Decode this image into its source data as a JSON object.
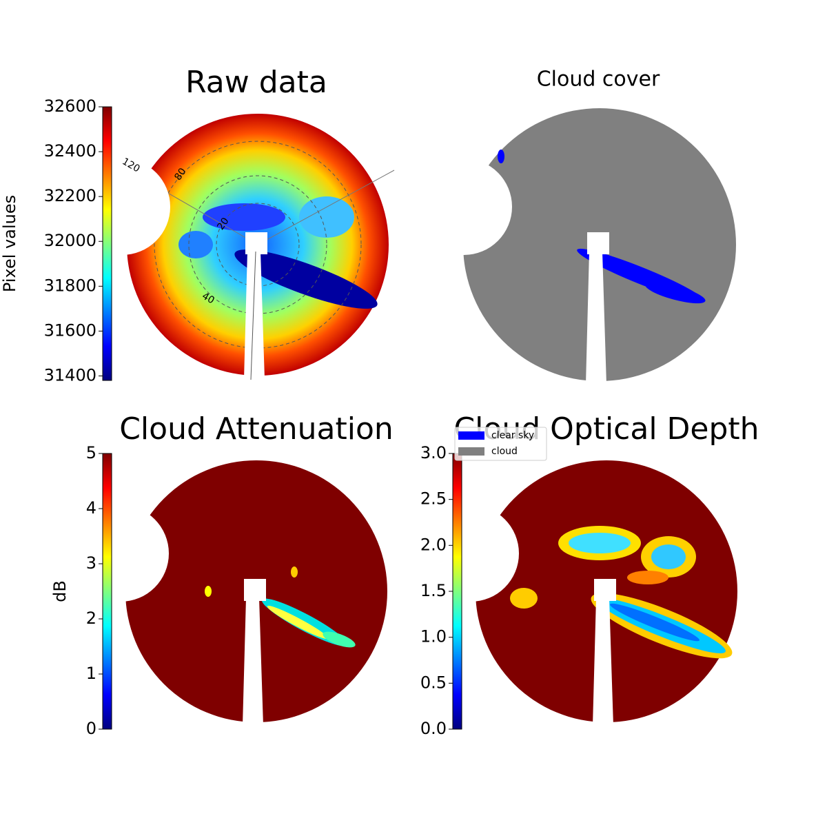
{
  "chart_data": [
    {
      "type": "heatmap",
      "title": "Raw data",
      "colorbar_label": "Pixel values",
      "colormap": "jet",
      "ylim": [
        31380,
        32600
      ],
      "yticks": [
        31400,
        31600,
        31800,
        32000,
        32200,
        32400,
        32600
      ],
      "annotations": [
        "120",
        "80",
        "20",
        "40"
      ]
    },
    {
      "type": "categorical",
      "title": "Cloud cover",
      "legend": [
        {
          "name": "clear sky",
          "color": "#0000ff"
        },
        {
          "name": "cloud",
          "color": "#808080"
        }
      ]
    },
    {
      "type": "heatmap",
      "title": "Cloud Attenuation",
      "colorbar_label": "dB",
      "colormap": "jet",
      "ylim": [
        0,
        5
      ],
      "yticks": [
        0,
        1,
        2,
        3,
        4,
        5
      ]
    },
    {
      "type": "heatmap",
      "title": "Cloud Optical Depth",
      "colormap": "jet",
      "ylim": [
        0,
        3
      ],
      "yticks": [
        {
          "value": 0,
          "label": "0.0"
        },
        {
          "value": 0.5,
          "label": "0.5"
        },
        {
          "value": 1,
          "label": "1.0"
        },
        {
          "value": 1.5,
          "label": "1.5"
        },
        {
          "value": 2,
          "label": "2.0"
        },
        {
          "value": 2.5,
          "label": "2.5"
        },
        {
          "value": 3,
          "label": "3.0"
        }
      ]
    }
  ]
}
